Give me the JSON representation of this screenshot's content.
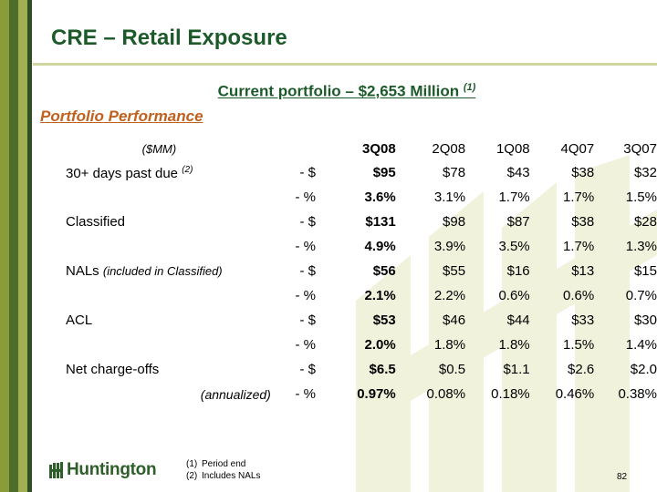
{
  "colors": {
    "title": "#1d5a2a",
    "section": "#c0611e",
    "stripe_dark": "#2f5022",
    "stripe_light": "#a2ae52"
  },
  "title": "CRE – Retail Exposure",
  "subtitle": {
    "text": "Current portfolio  – $2,653 Million",
    "note": "(1)"
  },
  "section_title": "Portfolio Performance",
  "table": {
    "unit_label": "($MM)",
    "columns": [
      "3Q08",
      "2Q08",
      "1Q08",
      "4Q07",
      "3Q07"
    ],
    "rows": [
      {
        "label": "30+ days past due",
        "note": "(2)",
        "unit": "- $",
        "values": [
          "$95",
          "$78",
          "$43",
          "$38",
          "$32"
        ]
      },
      {
        "label": "",
        "note": "",
        "unit": "- %",
        "values": [
          "3.6%",
          "3.1%",
          "1.7%",
          "1.7%",
          "1.5%"
        ]
      },
      {
        "label": "Classified",
        "note": "",
        "unit": "- $",
        "values": [
          "$131",
          "$98",
          "$87",
          "$38",
          "$28"
        ]
      },
      {
        "label": "",
        "note": "",
        "unit": "- %",
        "values": [
          "4.9%",
          "3.9%",
          "3.5%",
          "1.7%",
          "1.3%"
        ]
      },
      {
        "label": "NALs",
        "note": "(included in Classified)",
        "unit": "- $",
        "values": [
          "$56",
          "$55",
          "$16",
          "$13",
          "$15"
        ]
      },
      {
        "label": "",
        "note": "",
        "unit": "- %",
        "values": [
          "2.1%",
          "2.2%",
          "0.6%",
          "0.6%",
          "0.7%"
        ]
      },
      {
        "label": "ACL",
        "note": "",
        "unit": "- $",
        "values": [
          "$53",
          "$46",
          "$44",
          "$33",
          "$30"
        ]
      },
      {
        "label": "",
        "note": "",
        "unit": "- %",
        "values": [
          "2.0%",
          "1.8%",
          "1.8%",
          "1.5%",
          "1.4%"
        ]
      },
      {
        "label": "Net charge-offs",
        "note": "",
        "unit": "- $",
        "values": [
          "$6.5",
          "$0.5",
          "$1.1",
          "$2.6",
          "$2.0"
        ]
      },
      {
        "label": "(annualized)",
        "note": "",
        "unit": "- %",
        "values": [
          "0.97%",
          "0.08%",
          "0.18%",
          "0.46%",
          "0.38%"
        ]
      }
    ]
  },
  "logo": {
    "text": "Huntington",
    "icon": "huntington-logo-icon"
  },
  "footnotes": [
    {
      "num": "(1)",
      "text": "Period end"
    },
    {
      "num": "(2)",
      "text": "Includes NALs"
    }
  ],
  "page_number": "82"
}
